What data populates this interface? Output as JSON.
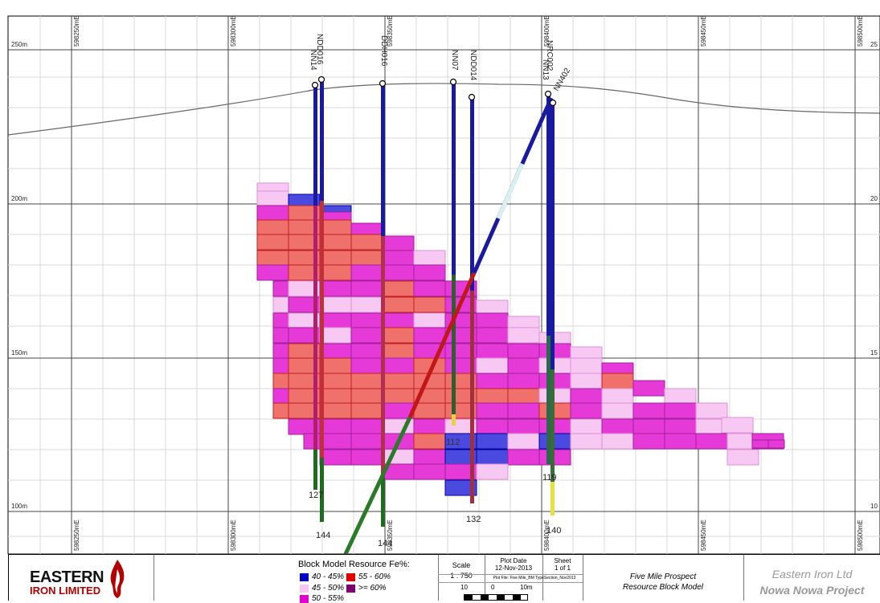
{
  "grid": {
    "easting_labels_top": [
      "598250mE",
      "598300mE",
      "598350mE",
      "598400mE",
      "598450mE",
      "598500mE"
    ],
    "easting_labels_bottom": [
      "598250mE",
      "598300mE",
      "598350mE",
      "598400mE",
      "598450mE",
      "598500mE"
    ],
    "elevation_labels_left": [
      "250m",
      "200m",
      "150m",
      "100m"
    ],
    "elevation_labels_right": [
      "25",
      "20",
      "15",
      "10"
    ]
  },
  "drillholes": {
    "labels": [
      "NDD016",
      "NN14",
      "DDH016",
      "NN07",
      "NDD014",
      "NRC002",
      "NN13",
      "NN402"
    ],
    "end_depths": [
      "127",
      "144",
      "144",
      "112",
      "132",
      "119",
      "140"
    ]
  },
  "legend": {
    "title": "Block Model Resource Fe%:",
    "items": [
      {
        "label": "40 - 45%",
        "color": "#0000c0"
      },
      {
        "label": "55 - 60%",
        "color": "#e00000"
      },
      {
        "label": "45 - 50%",
        "color": "#f4c6f0"
      },
      {
        "label": ">= 60%",
        "color": "#7a0070"
      },
      {
        "label": "50 - 55%",
        "color": "#e000d0"
      }
    ]
  },
  "scale": {
    "label": "Scale",
    "value": "1 : 750",
    "bar_left": "10",
    "bar_mid": "0",
    "bar_right": "10m"
  },
  "plot": {
    "date_label": "Plot Date",
    "date_value": "12-Nov-2013",
    "file_line": "Plot File: Five Mile_BM TypeSection_Nov2013"
  },
  "sheet": {
    "label": "Sheet",
    "value": "1 of 1"
  },
  "title": {
    "line1": "Five Mile Prospect",
    "line2": "Resource Block Model"
  },
  "company": {
    "name": "Eastern Iron Ltd",
    "project": "Nowa Nowa Project",
    "logo_line1": "EASTERN",
    "logo_line2": "IRON LIMITED"
  }
}
